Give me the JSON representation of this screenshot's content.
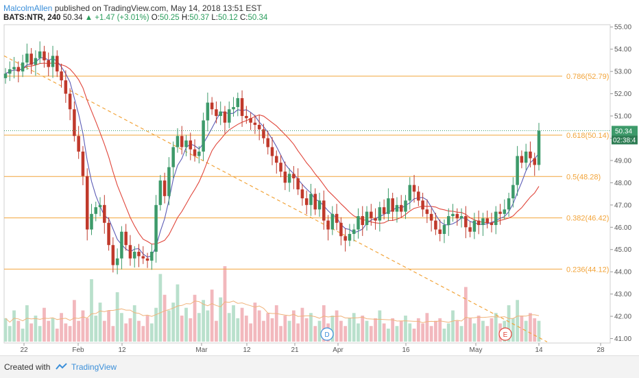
{
  "header": {
    "author": "MalcolmAllen",
    "published": "published on TradingView.com, May 14, 2018 13:51 EST",
    "symbol": "BATS:NTR, 240",
    "last": "50.34",
    "change": "+1.47 (+3.01%)",
    "o_label": "O:",
    "o_value": "50.25",
    "h_label": "H:",
    "h_value": "50.37",
    "l_label": "L:",
    "l_value": "50.12",
    "c_label": "C:",
    "c_value": "50.34"
  },
  "footer": {
    "created": "Created with",
    "brand": "TradingView"
  },
  "chart_data": {
    "type": "candlestick",
    "price_range": [
      40.8,
      55.1
    ],
    "y_ticks": [
      "55.00",
      "54.00",
      "53.00",
      "52.00",
      "51.00",
      "50.00",
      "49.00",
      "48.00",
      "47.00",
      "46.00",
      "45.00",
      "44.00",
      "43.00",
      "42.00",
      "41.00"
    ],
    "x_ticks": [
      "22",
      "Feb",
      "12",
      "Mar",
      "12",
      "21",
      "Apr",
      "16",
      "May",
      "14",
      "28"
    ],
    "last_price_label": "50.34",
    "countdown_label": "02:38:4",
    "fib_levels": [
      {
        "label": "0.786(52.79)",
        "price": 52.79
      },
      {
        "label": "0.618(50.14)",
        "price": 50.14
      },
      {
        "label": "0.5(48.28)",
        "price": 48.28
      },
      {
        "label": "0.382(46.42)",
        "price": 46.42
      },
      {
        "label": "0.236(44.12)",
        "price": 44.12
      }
    ],
    "event_markers": [
      {
        "label": "D"
      },
      {
        "label": "E"
      }
    ],
    "colors": {
      "up": "#3d9a6a",
      "down": "#c0392b",
      "fib": "#f2a43a",
      "ma_fast": "#5b5bb5",
      "ma_slow": "#e0453a",
      "vol_up": "#b9e0cc",
      "vol_down": "#f2b8bd",
      "vol_ma": "#f0b27a",
      "price_line": "#3d9a6a"
    },
    "closes": [
      52.9,
      53.1,
      53.2,
      53.0,
      53.4,
      53.8,
      53.3,
      53.6,
      53.9,
      53.5,
      53.2,
      53.7,
      53.0,
      52.6,
      52.0,
      51.3,
      50.1,
      49.4,
      48.3,
      45.9,
      46.6,
      46.9,
      47.0,
      46.2,
      45.2,
      44.3,
      44.6,
      45.8,
      45.2,
      44.6,
      44.9,
      44.7,
      44.6,
      44.5,
      44.9,
      47.0,
      48.1,
      47.4,
      48.7,
      49.6,
      50.1,
      49.6,
      49.9,
      49.5,
      49.2,
      49.4,
      50.8,
      51.6,
      51.3,
      51.0,
      51.2,
      50.7,
      51.3,
      51.4,
      51.8,
      51.0,
      50.9,
      50.7,
      50.6,
      50.4,
      50.0,
      49.6,
      49.2,
      48.9,
      48.5,
      48.0,
      48.4,
      48.2,
      47.7,
      47.3,
      47.0,
      47.5,
      46.8,
      47.2,
      46.3,
      45.9,
      46.6,
      46.2,
      45.6,
      45.4,
      45.7,
      45.9,
      46.5,
      46.1,
      46.7,
      46.4,
      46.3,
      46.9,
      46.6,
      47.3,
      46.7,
      47.0,
      46.7,
      47.2,
      47.9,
      47.6,
      47.2,
      46.8,
      46.6,
      46.3,
      45.9,
      45.7,
      46.1,
      46.5,
      46.6,
      46.4,
      46.5,
      46.0,
      45.8,
      46.3,
      46.1,
      46.4,
      46.2,
      46.1,
      46.7,
      46.6,
      46.8,
      47.3,
      47.9,
      49.2,
      48.9,
      49.4,
      49.1,
      48.8,
      50.34
    ],
    "volumes": [
      0.9,
      0.6,
      1.2,
      0.8,
      0.5,
      1.4,
      0.7,
      1.0,
      0.6,
      1.3,
      0.8,
      0.9,
      0.5,
      1.1,
      0.7,
      0.6,
      1.6,
      0.8,
      1.2,
      0.9,
      2.4,
      1.0,
      1.5,
      0.8,
      1.2,
      0.6,
      1.9,
      1.1,
      0.7,
      0.9,
      1.4,
      0.8,
      0.6,
      1.0,
      0.7,
      1.3,
      2.6,
      1.8,
      1.2,
      1.5,
      2.2,
      1.0,
      1.3,
      0.9,
      1.8,
      1.1,
      1.6,
      1.2,
      2.0,
      0.8,
      1.7,
      2.9,
      1.1,
      1.4,
      0.9,
      1.3,
      1.0,
      0.7,
      1.5,
      1.2,
      0.8,
      1.1,
      0.9,
      1.4,
      0.6,
      1.0,
      0.8,
      1.2,
      0.7,
      1.3,
      0.9,
      1.1,
      0.6,
      0.8,
      1.4,
      0.7,
      1.0,
      1.2,
      0.8,
      0.6,
      0.9,
      1.1,
      0.7,
      1.0,
      0.8,
      0.6,
      0.9,
      1.2,
      0.7,
      0.5,
      0.9,
      0.6,
      0.8,
      1.0,
      0.7,
      0.5,
      0.9,
      0.7,
      1.1,
      0.6,
      0.8,
      0.9,
      0.5,
      0.7,
      1.2,
      0.8,
      0.6,
      2.1,
      0.9,
      0.7,
      1.0,
      0.8,
      0.6,
      0.9,
      1.1,
      0.7,
      0.8,
      1.4,
      0.9,
      1.6,
      1.0,
      0.8,
      1.1,
      0.9,
      0.8
    ]
  }
}
